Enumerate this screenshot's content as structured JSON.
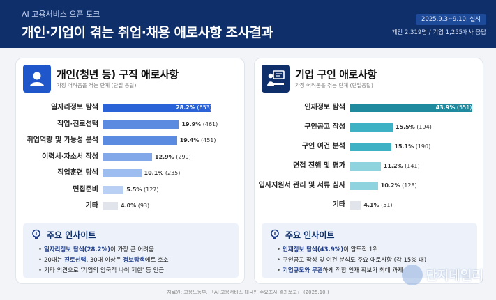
{
  "header": {
    "subtitle": "AI 고용서비스 오픈 토크",
    "title": "개인·기업이 겪는 취업·채용 애로사항 조사결과",
    "date": "2025.9.3~9.10. 실시",
    "respondents": "개인 2,319명 / 기업 1,255개사 응답"
  },
  "left": {
    "icon": "person-icon",
    "title": "개인(청년 등) 구직 애로사항",
    "subtitle": "가장 어려움을 겪는 단계 (단일 응답)",
    "insight_title": "주요 인사이트",
    "insights": [
      {
        "pre": "",
        "bold": "일자리정보 탐색(28.2%)",
        "post": "이 가장 큰 어려움"
      },
      {
        "pre": "20대는 ",
        "bold": "진로선택",
        "post": ", 30대 이상은 ",
        "bold2": "정보탐색",
        "post2": "에로 호소"
      },
      {
        "pre": "기타 의견으로 '기업의 암묵적 나이 제한' 등 언급",
        "bold": "",
        "post": ""
      }
    ]
  },
  "right": {
    "icon": "presenter-icon",
    "title": "기업 구인 애로사항",
    "subtitle": "가장 어려움을 겪는 단계 (단일응답)",
    "insight_title": "주요 인사이트",
    "insights": [
      {
        "pre": "",
        "bold": "인재정보 탐색(43.9%)",
        "post": "이 압도적 1위"
      },
      {
        "pre": "구인공고 작성 및 여건 분석도 주요 애로사항 (각 15% 대)",
        "bold": "",
        "post": ""
      },
      {
        "pre": "",
        "bold": "기업규모와 무관",
        "post": "하게 적합 인재 확보가 최대 과제"
      }
    ]
  },
  "chart_data": [
    {
      "type": "bar",
      "categories": [
        "일자리정보 탐색",
        "직업·진로선택",
        "취업역량 및 가능성 분석",
        "이력서·자소서 작성",
        "직업훈련 탐색",
        "면접준비",
        "기타"
      ],
      "values": [
        28.2,
        19.9,
        19.4,
        12.9,
        10.1,
        5.5,
        4.0
      ],
      "counts": [
        "(653)",
        "(461)",
        "(451)",
        "(299)",
        "(235)",
        "(127)",
        "(93)"
      ],
      "value_labels": [
        "28.2%",
        "19.9%",
        "19.4%",
        "12.9%",
        "10.1%",
        "5.5%",
        "4.0%"
      ],
      "colors": [
        "#2a62d8",
        "#5b8be0",
        "#5b8be0",
        "#82a8ea",
        "#9dbcef",
        "#b9d0f4",
        "#e1e4ea"
      ],
      "xlim": [
        0,
        30
      ]
    },
    {
      "type": "bar",
      "categories": [
        "인재정보 탐색",
        "구인공고 작성",
        "구인 여건 분석",
        "면접 진행 및 평가",
        "입사지원서 관리 및 서류 심사",
        "기타"
      ],
      "values": [
        43.9,
        15.5,
        15.1,
        11.2,
        10.2,
        4.1
      ],
      "counts": [
        "(551)",
        "(194)",
        "(190)",
        "(141)",
        "(128)",
        "(51)"
      ],
      "value_labels": [
        "43.9%",
        "15.5%",
        "15.1%",
        "11.2%",
        "10.2%",
        "4.1%"
      ],
      "colors": [
        "#1f8a9e",
        "#3fb1c4",
        "#3fb1c4",
        "#8fd3df",
        "#8fd3df",
        "#e1e4ea"
      ],
      "xlim": [
        0,
        46
      ]
    }
  ],
  "source": "자료원: 고용노동부, 「AI 고용서비스 대국민 수요조사 결과보고」 (2025.10.)",
  "watermark": "단지데일리"
}
